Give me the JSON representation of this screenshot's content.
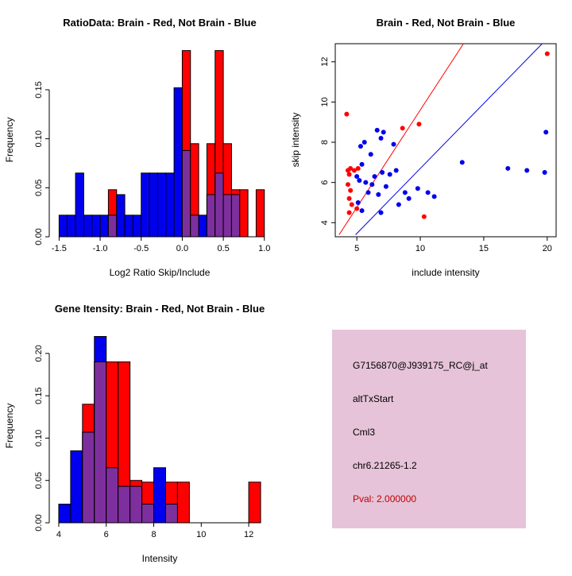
{
  "colors": {
    "red": "#FF0000",
    "blue": "#0000EE",
    "overlap": "#7E2F9E",
    "axis": "#000000",
    "box_bg": "#E6C3D8",
    "pval_text": "#C00000"
  },
  "chart_data": [
    {
      "type": "bar",
      "panel": "top-left",
      "title": "RatioData: Brain - Red, Not Brain - Blue",
      "xlabel": "Log2 Ratio Skip/Include",
      "ylabel": "Frequency",
      "xlim": [
        -1.62,
        1.07
      ],
      "ylim": [
        0,
        0.197
      ],
      "xticks": [
        -1.5,
        -1.0,
        -0.5,
        0.0,
        0.5,
        1.0
      ],
      "xtick_labels": [
        "-1.5",
        "-1.0",
        "-0.5",
        "0.0",
        "0.5",
        "1.0"
      ],
      "yticks": [
        0,
        0.05,
        0.1,
        0.15
      ],
      "ytick_labels": [
        "0.00",
        "0.05",
        "0.10",
        "0.15"
      ],
      "bin_start": -1.5,
      "bin_width": 0.1,
      "series": [
        {
          "name": "Not Brain",
          "color_key": "blue",
          "values": [
            0.022,
            0.022,
            0.065,
            0.022,
            0.022,
            0.022,
            0.022,
            0.043,
            0.022,
            0.022,
            0.065,
            0.065,
            0.065,
            0.065,
            0.152,
            0.088,
            0.022,
            0.022,
            0.043,
            0.065,
            0.043,
            0.043,
            0,
            0,
            0
          ]
        },
        {
          "name": "Brain",
          "color_key": "red",
          "values": [
            0,
            0,
            0,
            0,
            0,
            0,
            0.048,
            0,
            0,
            0,
            0,
            0,
            0,
            0,
            0,
            0.19,
            0.095,
            0,
            0.095,
            0.19,
            0.095,
            0.048,
            0.048,
            0,
            0.048
          ]
        }
      ]
    },
    {
      "type": "scatter",
      "panel": "top-right",
      "title": "Brain - Red, Not Brain - Blue",
      "xlabel": "include intensity",
      "ylabel": "skip intensity",
      "xlim": [
        3.3,
        20.7
      ],
      "ylim": [
        3.3,
        12.9
      ],
      "xticks": [
        5,
        10,
        15,
        20
      ],
      "xtick_labels": [
        "5",
        "10",
        "15",
        "20"
      ],
      "yticks": [
        4,
        6,
        8,
        10,
        12
      ],
      "ytick_labels": [
        "4",
        "6",
        "8",
        "10",
        "12"
      ],
      "series": [
        {
          "name": "Brain",
          "color_key": "red",
          "points": [
            [
              4.2,
              9.4
            ],
            [
              8.6,
              8.7
            ],
            [
              9.9,
              8.9
            ],
            [
              4.3,
              6.6
            ],
            [
              4.5,
              6.7
            ],
            [
              4.8,
              6.6
            ],
            [
              5.1,
              6.7
            ],
            [
              4.4,
              6.4
            ],
            [
              4.3,
              5.9
            ],
            [
              4.5,
              5.6
            ],
            [
              4.4,
              5.2
            ],
            [
              4.6,
              4.9
            ],
            [
              5.0,
              4.7
            ],
            [
              4.4,
              4.5
            ],
            [
              10.3,
              4.3
            ],
            [
              20.0,
              12.4
            ]
          ]
        },
        {
          "name": "Not Brain",
          "color_key": "blue",
          "points": [
            [
              5.6,
              8.0
            ],
            [
              6.6,
              8.6
            ],
            [
              7.1,
              8.5
            ],
            [
              6.9,
              8.2
            ],
            [
              5.3,
              7.8
            ],
            [
              6.1,
              7.4
            ],
            [
              7.9,
              7.9
            ],
            [
              5.4,
              6.9
            ],
            [
              6.4,
              6.3
            ],
            [
              7.0,
              6.5
            ],
            [
              7.6,
              6.4
            ],
            [
              8.1,
              6.6
            ],
            [
              5.0,
              6.3
            ],
            [
              5.2,
              6.1
            ],
            [
              5.7,
              6.0
            ],
            [
              6.2,
              5.9
            ],
            [
              5.9,
              5.5
            ],
            [
              6.7,
              5.4
            ],
            [
              7.3,
              5.8
            ],
            [
              8.8,
              5.5
            ],
            [
              9.1,
              5.2
            ],
            [
              9.8,
              5.7
            ],
            [
              10.6,
              5.5
            ],
            [
              11.1,
              5.3
            ],
            [
              5.1,
              5.0
            ],
            [
              5.4,
              4.6
            ],
            [
              6.9,
              4.5
            ],
            [
              8.3,
              4.9
            ],
            [
              13.3,
              7.0
            ],
            [
              16.9,
              6.7
            ],
            [
              18.4,
              6.6
            ],
            [
              19.9,
              8.5
            ],
            [
              19.8,
              6.5
            ]
          ]
        }
      ],
      "lines": [
        {
          "color_key": "red",
          "x1": 3.6,
          "y1": 3.4,
          "x2": 13.4,
          "y2": 12.9
        },
        {
          "color_key": "blue",
          "x1": 4.9,
          "y1": 3.4,
          "x2": 19.6,
          "y2": 12.9
        }
      ]
    },
    {
      "type": "bar",
      "panel": "bottom-left",
      "title": "Gene Itensity: Brain - Red, Not Brain - Blue",
      "xlabel": "Intensity",
      "ylabel": "Frequency",
      "xlim": [
        3.6,
        12.9
      ],
      "ylim": [
        0,
        0.228
      ],
      "xticks": [
        4,
        6,
        8,
        10,
        12
      ],
      "xtick_labels": [
        "4",
        "6",
        "8",
        "10",
        "12"
      ],
      "yticks": [
        0,
        0.05,
        0.1,
        0.15,
        0.2
      ],
      "ytick_labels": [
        "0.00",
        "0.05",
        "0.10",
        "0.15",
        "0.20"
      ],
      "bin_start": 4.0,
      "bin_width": 0.5,
      "series": [
        {
          "name": "Not Brain",
          "color_key": "blue",
          "values": [
            0.022,
            0.085,
            0.107,
            0.22,
            0.065,
            0.043,
            0.043,
            0.022,
            0.065,
            0.022,
            0,
            0,
            0,
            0,
            0,
            0,
            0
          ]
        },
        {
          "name": "Brain",
          "color_key": "red",
          "values": [
            0,
            0,
            0.14,
            0.19,
            0.19,
            0.19,
            0.05,
            0.048,
            0,
            0.048,
            0.048,
            0,
            0,
            0,
            0,
            0,
            0.048
          ]
        }
      ]
    }
  ],
  "info_box": {
    "lines": [
      {
        "text": "G7156870@J939175_RC@j_at",
        "color": "#000000"
      },
      {
        "text": "altTxStart",
        "color": "#000000"
      },
      {
        "text": "Cml3",
        "color": "#000000"
      },
      {
        "text": "chr6.21265-1.2",
        "color": "#000000"
      },
      {
        "text": "Pval: 2.000000",
        "color": "#C00000"
      }
    ]
  }
}
